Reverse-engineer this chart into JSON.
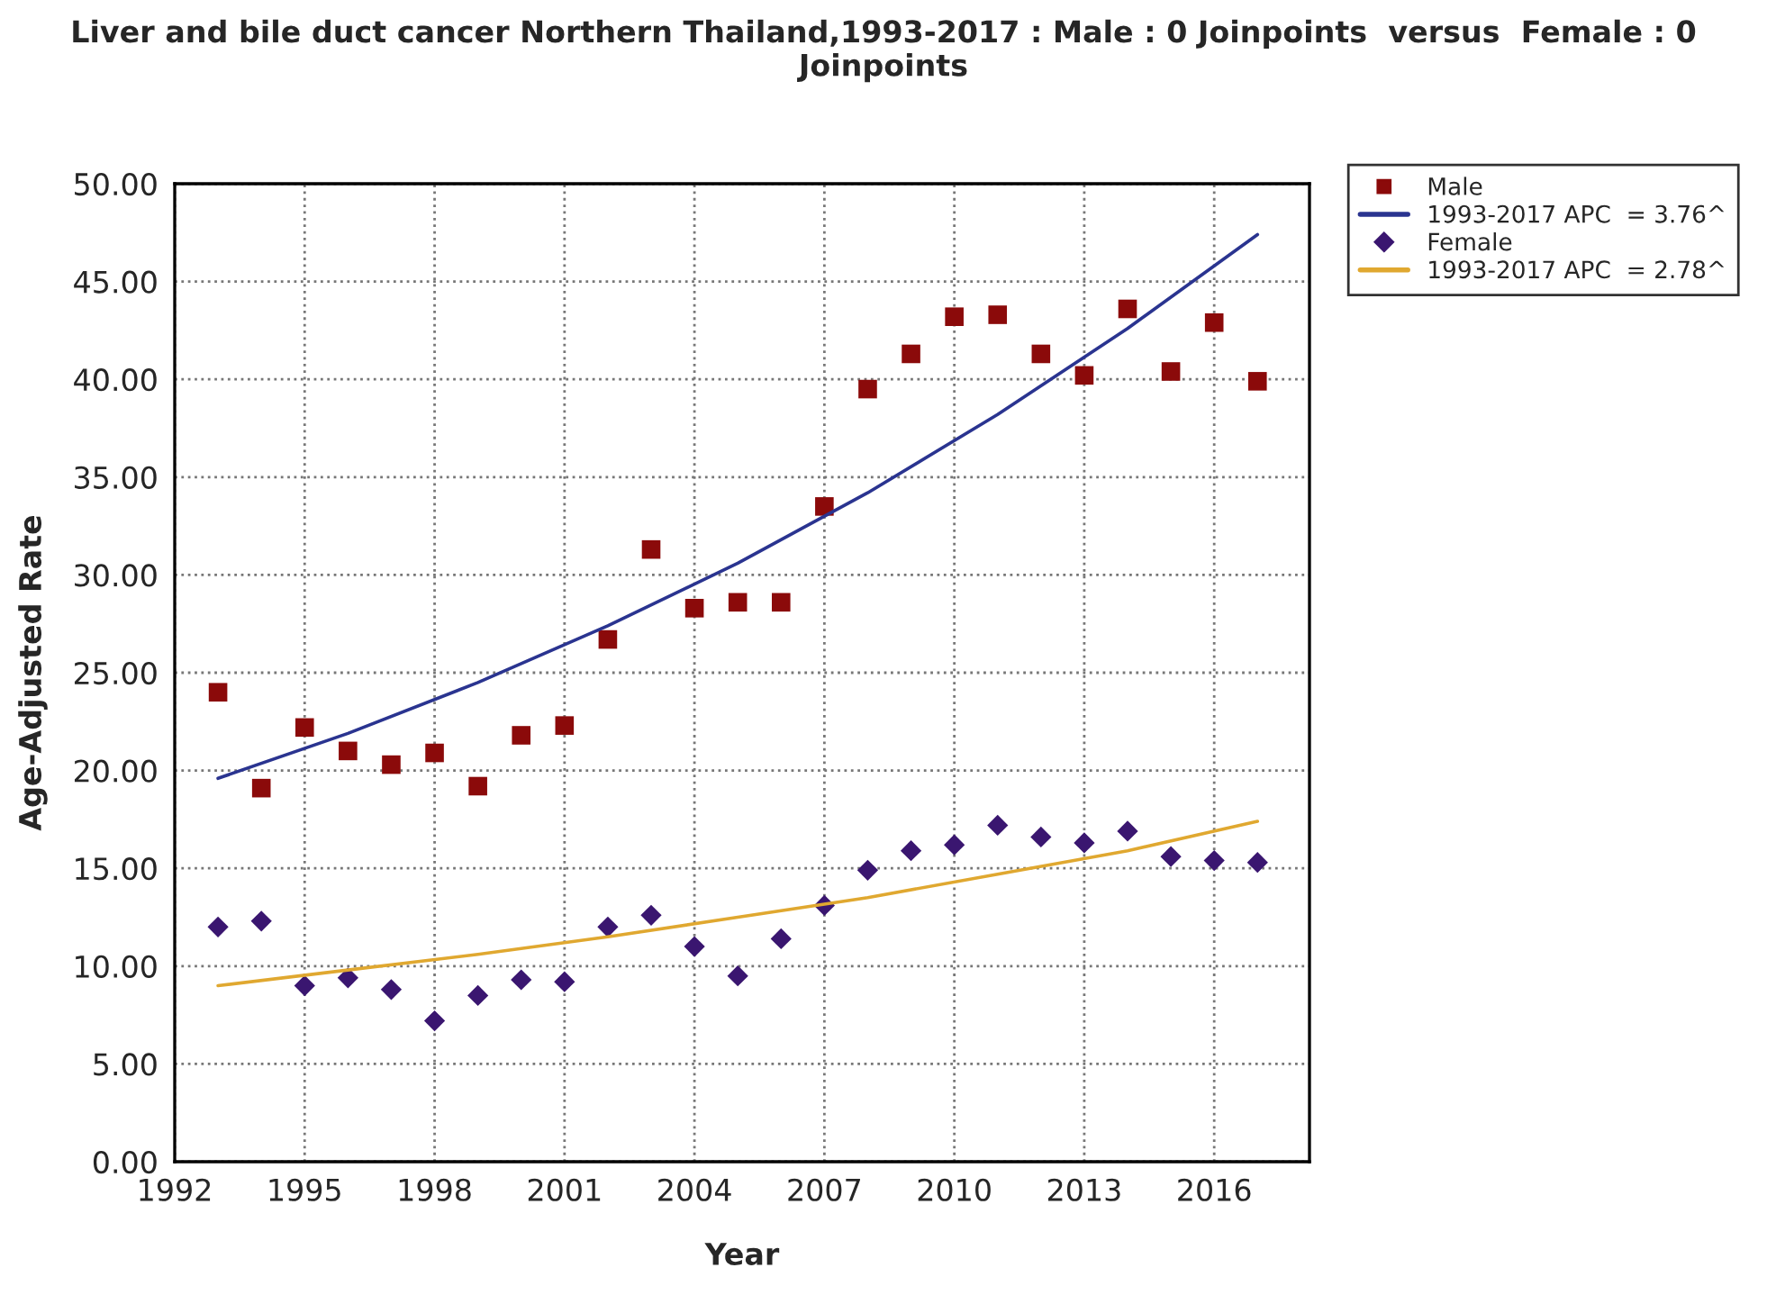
{
  "chart_data": {
    "type": "scatter",
    "title": "Liver and bile duct cancer Northern Thailand,1993-2017 : Male : 0 Joinpoints  versus  Female : 0 Joinpoints",
    "xlabel": "Year",
    "ylabel": "Age-Adjusted Rate",
    "xlim": [
      1992,
      2018.2
    ],
    "xticks": [
      1992,
      1995,
      1998,
      2001,
      2004,
      2007,
      2010,
      2013,
      2016
    ],
    "ylim": [
      0,
      50
    ],
    "yticks": [
      {
        "value": 0,
        "label": "0.00"
      },
      {
        "value": 5,
        "label": "5.00"
      },
      {
        "value": 10,
        "label": "10.00"
      },
      {
        "value": 15,
        "label": "15.00"
      },
      {
        "value": 20,
        "label": "20.00"
      },
      {
        "value": 25,
        "label": "25.00"
      },
      {
        "value": 30,
        "label": "30.00"
      },
      {
        "value": 35,
        "label": "35.00"
      },
      {
        "value": 40,
        "label": "40.00"
      },
      {
        "value": 45,
        "label": "45.00"
      },
      {
        "value": 50,
        "label": "50.00"
      }
    ],
    "grid": true,
    "legend": "top right",
    "series": [
      {
        "name": "Male",
        "marker": "square",
        "color": "#8b0a0a",
        "x": [
          1993,
          1994,
          1995,
          1996,
          1997,
          1998,
          1999,
          2000,
          2001,
          2002,
          2003,
          2004,
          2005,
          2006,
          2007,
          2008,
          2009,
          2010,
          2011,
          2012,
          2013,
          2014,
          2015,
          2016,
          2017
        ],
        "values": [
          24.0,
          19.1,
          22.2,
          21.0,
          20.3,
          20.9,
          19.2,
          21.8,
          22.3,
          26.7,
          31.3,
          28.3,
          28.6,
          28.6,
          33.5,
          39.5,
          41.3,
          43.2,
          43.3,
          41.3,
          40.2,
          43.6,
          40.4,
          42.9,
          39.9
        ]
      },
      {
        "name": "1993-2017 APC  = 3.76^",
        "type": "line",
        "color": "#2a3490",
        "x": [
          1993,
          1996,
          1999,
          2002,
          2005,
          2008,
          2011,
          2014,
          2017
        ],
        "values": [
          19.6,
          21.9,
          24.5,
          27.4,
          30.6,
          34.2,
          38.2,
          42.6,
          47.4
        ]
      },
      {
        "name": "Female",
        "marker": "diamond",
        "color": "#3a1670",
        "x": [
          1993,
          1994,
          1995,
          1996,
          1997,
          1998,
          1999,
          2000,
          2001,
          2002,
          2003,
          2004,
          2005,
          2006,
          2007,
          2008,
          2009,
          2010,
          2011,
          2012,
          2013,
          2014,
          2015,
          2016,
          2017
        ],
        "values": [
          12.0,
          12.3,
          9.0,
          9.4,
          8.8,
          7.2,
          8.5,
          9.3,
          9.2,
          12.0,
          12.6,
          11.0,
          9.5,
          11.4,
          13.1,
          14.9,
          15.9,
          16.2,
          17.2,
          16.6,
          16.3,
          16.9,
          15.6,
          15.4,
          15.3
        ]
      },
      {
        "name": "1993-2017 APC  = 2.78^",
        "type": "line",
        "color": "#e0a830",
        "x": [
          1993,
          1996,
          1999,
          2002,
          2005,
          2008,
          2011,
          2014,
          2017
        ],
        "values": [
          9.0,
          9.8,
          10.6,
          11.5,
          12.5,
          13.5,
          14.7,
          15.9,
          17.4
        ]
      }
    ]
  }
}
